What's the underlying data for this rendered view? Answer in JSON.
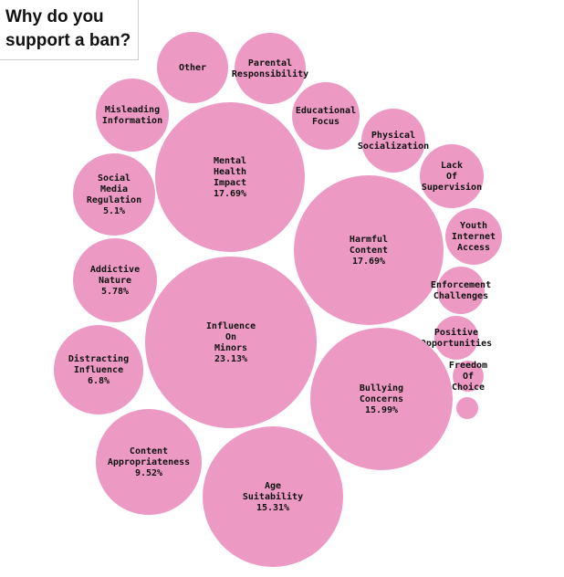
{
  "title": "Why do you support a ban?",
  "colors": {
    "bubble": "#ec9ac4",
    "label": "#111111"
  },
  "chart_data": {
    "type": "bubble",
    "title": "Why do you support a ban?",
    "unit": "%",
    "items": [
      {
        "label": [
          "Other"
        ],
        "value": null
      },
      {
        "label": [
          "Parental",
          "Responsibility"
        ],
        "value": null
      },
      {
        "label": [
          "Misleading",
          "Information"
        ],
        "value": null
      },
      {
        "label": [
          "Educational",
          "Focus"
        ],
        "value": null
      },
      {
        "label": [
          "Physical",
          "Socialization"
        ],
        "value": null
      },
      {
        "label": [
          "Mental",
          "Health",
          "Impact"
        ],
        "value": 17.69
      },
      {
        "label": [
          "Lack",
          "Of",
          "Supervision"
        ],
        "value": null
      },
      {
        "label": [
          "Social",
          "Media",
          "Regulation"
        ],
        "value": 5.1
      },
      {
        "label": [
          "Youth",
          "Internet",
          "Access"
        ],
        "value": null
      },
      {
        "label": [
          "Harmful",
          "Content"
        ],
        "value": 17.69
      },
      {
        "label": [
          "Addictive",
          "Nature"
        ],
        "value": 5.78
      },
      {
        "label": [
          "Enforcement",
          "Challenges"
        ],
        "value": null
      },
      {
        "label": [
          "Influence",
          "On",
          "Minors"
        ],
        "value": 23.13
      },
      {
        "label": [
          "Positive",
          "Opportunities"
        ],
        "value": null
      },
      {
        "label": [
          "Distracting",
          "Influence"
        ],
        "value": 6.8
      },
      {
        "label": [
          "Freedom",
          "Of",
          "Choice"
        ],
        "value": null
      },
      {
        "label": [
          "Bullying",
          "Concerns"
        ],
        "value": 15.99
      },
      {
        "label": [],
        "value": null
      },
      {
        "label": [
          "Content",
          "Appropriateness"
        ],
        "value": 9.52
      },
      {
        "label": [
          "Age",
          "Suitability"
        ],
        "value": 15.31
      }
    ]
  }
}
